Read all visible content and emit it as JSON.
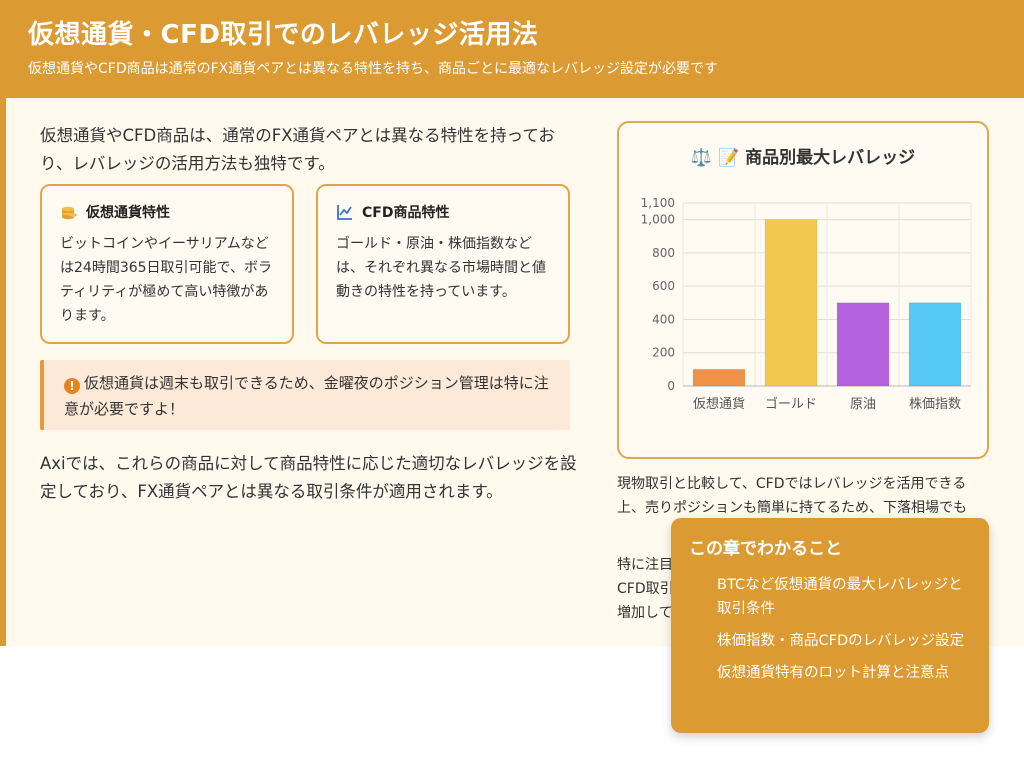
{
  "header": {
    "title": "仮想通貨・CFD取引でのレバレッジ活用法",
    "subtitle": "仮想通貨やCFD商品は通常のFX通貨ペアとは異なる特性を持ち、商品ごとに最適なレバレッジ設定が必要です"
  },
  "intro": "仮想通貨やCFD商品は、通常のFX通貨ペアとは異なる特性を持っており、レバレッジの活用方法も独特です。",
  "cards": [
    {
      "icon": "coins-icon",
      "title": "仮想通貨特性",
      "body": "ビットコインやイーサリアムなどは24時間365日取引可能で、ボラティリティが極めて高い特徴があります。"
    },
    {
      "icon": "chart-line-icon",
      "title": "CFD商品特性",
      "body": "ゴールド・原油・株価指数などは、それぞれ異なる市場時間と値動きの特性を持っています。"
    }
  ],
  "notice": "仮想通貨は週末も取引できるため、金曜夜のポジション管理は特に注意が必要ですよ！",
  "para2": "Axiでは、これらの商品に対して商品特性に応じた適切なレバレッジを設定しており、FX通貨ペアとは異なる取引条件が適用されます。",
  "chart_panel": {
    "title": "⚖️ 📝 商品別最大レバレッジ"
  },
  "chart_data": {
    "type": "bar",
    "title": "商品別最大レバレッジ",
    "categories": [
      "仮想通貨",
      "ゴールド",
      "原油",
      "株価指数"
    ],
    "values": [
      100,
      1000,
      500,
      500
    ],
    "colors": [
      "#f0914a",
      "#f2c94c",
      "#b562e0",
      "#56c8f5"
    ],
    "ylim": [
      0,
      1100
    ],
    "yticks": [
      0,
      200,
      400,
      600,
      800,
      1000,
      1100
    ],
    "ytick_labels": [
      "0",
      "200",
      "400",
      "600",
      "800",
      "1,000",
      "1,100"
    ],
    "grid": true
  },
  "right_para1": "現物取引と比較して、CFDではレバレッジを活用できる上、売りポジションも簡単に持てるため、下落相場でも",
  "right_para2": "特に注目\nCFD取引\n増加して",
  "summary": {
    "title": "この章でわかること",
    "items": [
      "BTCなど仮想通貨の最大レバレッジと取引条件",
      "株価指数・商品CFDのレバレッジ設定",
      "仮想通貨特有のロット計算と注意点"
    ]
  }
}
